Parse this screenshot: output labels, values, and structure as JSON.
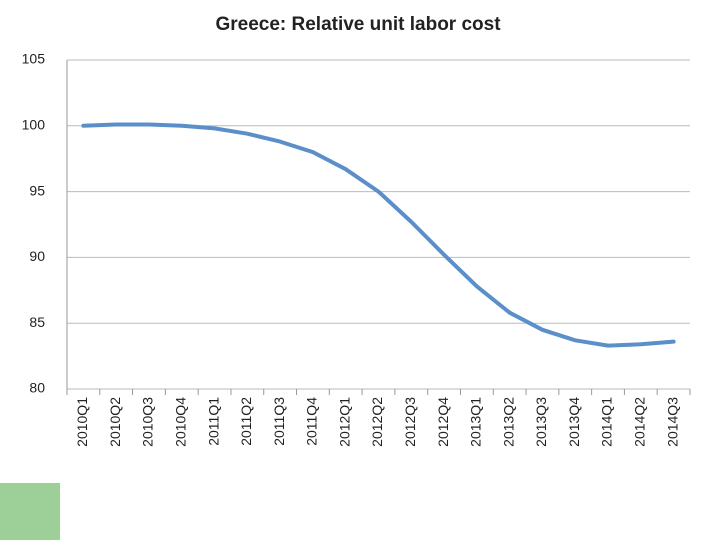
{
  "chart_data": {
    "type": "line",
    "title": "Greece: Relative unit labor cost",
    "categories": [
      "2010Q1",
      "2010Q2",
      "2010Q3",
      "2010Q4",
      "2011Q1",
      "2011Q2",
      "2011Q3",
      "2011Q4",
      "2012Q1",
      "2012Q2",
      "2012Q3",
      "2012Q4",
      "2013Q1",
      "2013Q2",
      "2013Q3",
      "2013Q4",
      "2014Q1",
      "2014Q2",
      "2014Q3"
    ],
    "values": [
      100,
      100.1,
      100.1,
      100,
      99.8,
      99.4,
      98.8,
      98,
      96.7,
      95,
      92.7,
      90.2,
      87.8,
      85.8,
      84.5,
      83.7,
      83.3,
      83.4,
      83.6
    ],
    "color": "#5b8fc9",
    "ylim": [
      80,
      105
    ],
    "yticks": [
      80,
      85,
      90,
      95,
      100,
      105
    ],
    "grid": true
  }
}
